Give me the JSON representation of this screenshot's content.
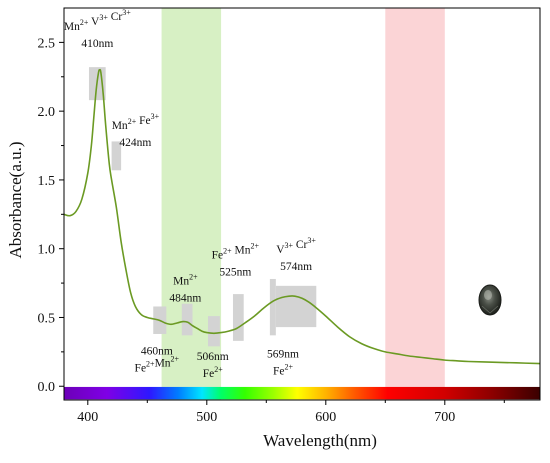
{
  "chart_data": {
    "type": "line",
    "xlabel": "Wavelength(nm)",
    "ylabel": "Absorbance(a.u.)",
    "xlim": [
      380,
      780
    ],
    "ylim": [
      -0.1,
      2.75
    ],
    "xticks": [
      400,
      500,
      600,
      700
    ],
    "yticks": [
      0.0,
      0.5,
      1.0,
      1.5,
      2.0,
      2.5
    ],
    "tick_labels_x": [
      "400",
      "500",
      "600",
      "700"
    ],
    "tick_labels_y": [
      "0.0",
      "0.5",
      "1.0",
      "1.5",
      "2.0",
      "2.5"
    ],
    "grid": false,
    "line_color": "#6b9a23",
    "series": [
      {
        "x": [
          380,
          385,
          390,
          395,
          400,
          403,
          405,
          407,
          409,
          410,
          411,
          413,
          415,
          418,
          420,
          424,
          428,
          432,
          436,
          440,
          445,
          450,
          455,
          460,
          465,
          470,
          475,
          480,
          484,
          488,
          492,
          496,
          500,
          506,
          512,
          518,
          525,
          532,
          540,
          548,
          556,
          563,
          569,
          574,
          580,
          586,
          592,
          600,
          610,
          620,
          630,
          640,
          650,
          660,
          670,
          680,
          690,
          700,
          710,
          720,
          740,
          760,
          780
        ],
        "y": [
          1.25,
          1.24,
          1.27,
          1.36,
          1.55,
          1.75,
          1.95,
          2.15,
          2.28,
          2.3,
          2.28,
          2.12,
          1.9,
          1.62,
          1.5,
          1.3,
          1.05,
          0.85,
          0.68,
          0.58,
          0.52,
          0.5,
          0.49,
          0.48,
          0.46,
          0.45,
          0.46,
          0.47,
          0.465,
          0.44,
          0.42,
          0.4,
          0.39,
          0.385,
          0.39,
          0.4,
          0.42,
          0.46,
          0.51,
          0.57,
          0.62,
          0.645,
          0.655,
          0.655,
          0.64,
          0.61,
          0.57,
          0.51,
          0.43,
          0.36,
          0.31,
          0.275,
          0.25,
          0.235,
          0.22,
          0.21,
          0.2,
          0.19,
          0.185,
          0.18,
          0.175,
          0.17,
          0.165
        ]
      }
    ],
    "bands": [
      {
        "x0": 462,
        "x1": 512,
        "color": "#d7f0c4"
      },
      {
        "x0": 650,
        "x1": 700,
        "color": "#fbd4d6"
      }
    ],
    "markers": [
      {
        "x0": 401,
        "x1": 415,
        "y0": 2.08,
        "y1": 2.32
      },
      {
        "x0": 420,
        "x1": 428,
        "y0": 1.57,
        "y1": 1.78
      },
      {
        "x0": 455,
        "x1": 466,
        "y0": 0.38,
        "y1": 0.58
      },
      {
        "x0": 479,
        "x1": 488,
        "y0": 0.37,
        "y1": 0.6
      },
      {
        "x0": 501,
        "x1": 511,
        "y0": 0.29,
        "y1": 0.51
      },
      {
        "x0": 522,
        "x1": 531,
        "y0": 0.33,
        "y1": 0.67
      },
      {
        "x0": 553,
        "x1": 558,
        "y0": 0.37,
        "y1": 0.78
      },
      {
        "x0": 558,
        "x1": 592,
        "y0": 0.43,
        "y1": 0.73
      }
    ],
    "annotations": [
      {
        "lines": [
          [
            [
              "Mn",
              "2+"
            ],
            [
              " V",
              "3+"
            ],
            [
              " Cr",
              "3+"
            ]
          ],
          [
            [
              "410nm",
              ""
            ]
          ]
        ],
        "x": 408,
        "y": 2.59,
        "anchor": "middle"
      },
      {
        "lines": [
          [
            [
              "Mn",
              "2+"
            ],
            [
              " Fe",
              "3+"
            ]
          ],
          [
            [
              "424nm",
              ""
            ]
          ]
        ],
        "x": 440,
        "y": 1.87,
        "anchor": "middle"
      },
      {
        "lines": [
          [
            [
              "Mn",
              "2+"
            ]
          ],
          [
            [
              "484nm",
              ""
            ]
          ]
        ],
        "x": 482,
        "y": 0.74,
        "anchor": "middle"
      },
      {
        "lines": [
          [
            [
              "Fe",
              "2+"
            ],
            [
              " Mn",
              "2+"
            ]
          ],
          [
            [
              "525nm",
              ""
            ]
          ]
        ],
        "x": 524,
        "y": 0.93,
        "anchor": "middle"
      },
      {
        "lines": [
          [
            [
              "V",
              "3+"
            ],
            [
              " Cr",
              "3+"
            ]
          ],
          [
            [
              "574nm",
              ""
            ]
          ]
        ],
        "x": 575,
        "y": 0.97,
        "anchor": "middle"
      },
      {
        "lines": [
          [
            [
              "460nm",
              ""
            ]
          ],
          [
            [
              "Fe",
              "2+"
            ],
            [
              "Mn",
              "2+"
            ]
          ]
        ],
        "x": 458,
        "y": 0.23,
        "anchor": "middle"
      },
      {
        "lines": [
          [
            [
              "506nm",
              ""
            ]
          ],
          [
            [
              "Fe",
              "2+"
            ]
          ]
        ],
        "x": 505,
        "y": 0.19,
        "anchor": "middle"
      },
      {
        "lines": [
          [
            [
              "569nm",
              ""
            ]
          ],
          [
            [
              "Fe",
              "2+"
            ]
          ]
        ],
        "x": 564,
        "y": 0.21,
        "anchor": "middle"
      }
    ],
    "spectrum_bar": {
      "x0": 380,
      "x1": 780,
      "y0": -0.095,
      "y1": -0.005
    },
    "gem_icon": "oval-gemstone"
  }
}
